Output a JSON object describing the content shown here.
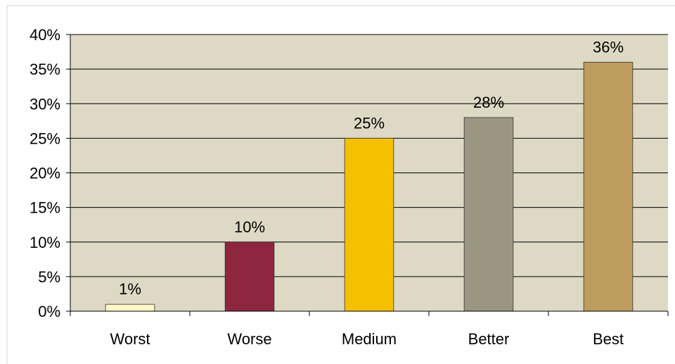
{
  "chart_data": {
    "type": "bar",
    "categories": [
      "Worst",
      "Worse",
      "Medium",
      "Better",
      "Best"
    ],
    "values": [
      1,
      10,
      25,
      28,
      36
    ],
    "data_labels": [
      "1%",
      "10%",
      "25%",
      "28%",
      "36%"
    ],
    "colors": [
      "#FFF8C8",
      "#8E2640",
      "#F5C000",
      "#9A9682",
      "#BD9D5E"
    ],
    "ylim": [
      0,
      40
    ],
    "y_ticks": [
      0,
      5,
      10,
      15,
      20,
      25,
      30,
      35,
      40
    ],
    "y_tick_labels": [
      "0%",
      "5%",
      "10%",
      "15%",
      "20%",
      "25%",
      "30%",
      "35%",
      "40%"
    ],
    "title": "",
    "xlabel": "",
    "ylabel": "",
    "grid": true,
    "legend": "none",
    "plot_background": "#DDD9C4"
  }
}
